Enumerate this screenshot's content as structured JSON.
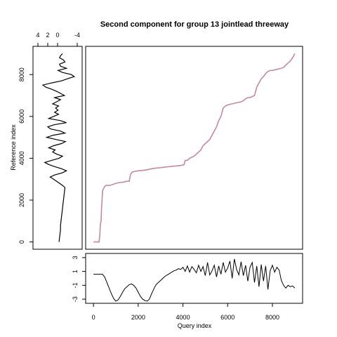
{
  "chart_data": [
    {
      "type": "line",
      "panel": "main",
      "title": "Second component for group 13 jointlead threeway",
      "xlabel": "Query index",
      "ylabel": "Reference index",
      "color": "#c48a9f",
      "xlim": [
        -350,
        9350
      ],
      "ylim": [
        -350,
        9350
      ],
      "series": [
        {
          "x": [
            0,
            100,
            250,
            280,
            300,
            320,
            340,
            360,
            380,
            400,
            420,
            450,
            500,
            550,
            600,
            700,
            800,
            1000,
            1200,
            1300,
            1500,
            1600,
            1650,
            1700,
            1750,
            1900,
            2000,
            2200,
            2400,
            2600,
            2800,
            3000,
            3200,
            3400,
            3600,
            3800,
            4000,
            4050,
            4100,
            4200,
            4300,
            4400,
            4500,
            4600,
            4700,
            4800,
            4900,
            5000,
            5100,
            5200,
            5300,
            5400,
            5500,
            5600,
            5700,
            5750,
            5800,
            5850,
            5900,
            6000,
            6200,
            6400,
            6600,
            6700,
            6800,
            6900,
            7000,
            7100,
            7200,
            7300,
            7400,
            7450,
            7500,
            7600,
            7700,
            7800,
            7900,
            8000,
            8200,
            8400,
            8500,
            8600,
            8700,
            8800,
            8900,
            9000
          ],
          "y": [
            0,
            0,
            0,
            300,
            700,
            900,
            1000,
            1600,
            2000,
            2300,
            2500,
            2550,
            2650,
            2700,
            2700,
            2700,
            2720,
            2800,
            2850,
            2850,
            2900,
            2900,
            3200,
            3300,
            3350,
            3380,
            3400,
            3420,
            3450,
            3500,
            3530,
            3550,
            3580,
            3600,
            3620,
            3640,
            3670,
            3700,
            3900,
            3900,
            4000,
            4050,
            4100,
            4200,
            4300,
            4400,
            4600,
            4700,
            4800,
            4900,
            5100,
            5300,
            5500,
            5800,
            6000,
            6200,
            6400,
            6450,
            6500,
            6550,
            6600,
            6650,
            6700,
            6750,
            6850,
            6900,
            6900,
            6950,
            7000,
            7400,
            7600,
            7700,
            7800,
            7900,
            8050,
            8150,
            8200,
            8200,
            8250,
            8300,
            8350,
            8450,
            8550,
            8650,
            8800,
            9000
          ]
        }
      ],
      "xticks": [
        0,
        2000,
        4000,
        6000,
        8000
      ],
      "yticks": [
        0,
        2000,
        4000,
        6000,
        8000
      ]
    },
    {
      "type": "line",
      "panel": "left",
      "description_axis": "reference signal plotted vertically",
      "xlim": [
        5,
        -5
      ],
      "ylim": [
        -350,
        9350
      ],
      "xticks": [
        4,
        2,
        0,
        -4
      ],
      "xtick_labels": [
        "4",
        "2",
        "0",
        "-4"
      ],
      "color": "#000000",
      "series": [
        {
          "y": [
            0,
            200,
            400,
            600,
            800,
            1000,
            1200,
            1400,
            1600,
            1800,
            2000,
            2200,
            2400,
            2600,
            2700,
            2800,
            2900,
            3000,
            3100,
            3200,
            3300,
            3400,
            3500,
            3600,
            3700,
            3800,
            3900,
            4000,
            4100,
            4200,
            4300,
            4400,
            4500,
            4600,
            4700,
            4800,
            4900,
            5000,
            5100,
            5200,
            5300,
            5400,
            5500,
            5600,
            5700,
            5800,
            5900,
            6000,
            6100,
            6200,
            6300,
            6400,
            6500,
            6600,
            6700,
            6800,
            6900,
            7000,
            7100,
            7200,
            7300,
            7400,
            7500,
            7600,
            7700,
            7800,
            7900,
            8000,
            8100,
            8200,
            8300,
            8400,
            8500,
            8600,
            8700,
            8800,
            8900,
            9000
          ],
          "x": [
            -0.3,
            -0.4,
            -0.5,
            -0.6,
            -0.6,
            -0.7,
            -0.8,
            -0.9,
            -1.0,
            -1.1,
            -1.2,
            -1.3,
            -1.4,
            -1.5,
            -1.0,
            -0.4,
            0.2,
            0.8,
            1.5,
            0.6,
            -0.9,
            -1.8,
            -0.8,
            0.6,
            1.8,
            2.6,
            1.2,
            -0.3,
            -1.0,
            0.2,
            1.0,
            0.5,
            1.8,
            0.8,
            -0.8,
            -1.6,
            0.4,
            2.2,
            0.9,
            -1.5,
            -0.6,
            1.4,
            2.0,
            0.7,
            -1.8,
            -0.6,
            1.8,
            0.8,
            -0.2,
            0.6,
            -0.1,
            0.4,
            -0.2,
            1.0,
            0.2,
            -0.6,
            0.6,
            -1.4,
            -0.6,
            0.2,
            1.2,
            2.4,
            3.0,
            1.2,
            -0.8,
            -2.0,
            -3.4,
            -2.8,
            -1.0,
            -0.1,
            -1.8,
            -0.6,
            -0.4,
            -1.5,
            -1.2,
            -0.4,
            -0.6,
            -1.0
          ]
        }
      ]
    },
    {
      "type": "line",
      "panel": "bottom",
      "description_axis": "query signal",
      "xlim": [
        -350,
        9350
      ],
      "ylim": [
        -3.6,
        3.6
      ],
      "yticks": [
        -3,
        -1,
        1,
        3
      ],
      "ytick_labels": [
        "-3",
        "-1",
        "1",
        "3"
      ],
      "color": "#000000",
      "series": [
        {
          "x": [
            0,
            200,
            400,
            500,
            600,
            700,
            800,
            900,
            1000,
            1100,
            1200,
            1300,
            1400,
            1500,
            1600,
            1700,
            1800,
            1900,
            2000,
            2100,
            2200,
            2300,
            2400,
            2500,
            2600,
            2700,
            2800,
            2900,
            3000,
            3100,
            3200,
            3300,
            3400,
            3500,
            3600,
            3700,
            3800,
            3900,
            4000,
            4100,
            4200,
            4300,
            4400,
            4500,
            4600,
            4700,
            4800,
            4900,
            5000,
            5100,
            5200,
            5300,
            5400,
            5500,
            5600,
            5700,
            5800,
            5900,
            6000,
            6100,
            6200,
            6300,
            6400,
            6500,
            6600,
            6700,
            6800,
            6900,
            7000,
            7100,
            7200,
            7300,
            7400,
            7500,
            7600,
            7700,
            7800,
            7900,
            8000,
            8100,
            8200,
            8300,
            8400,
            8500,
            8600,
            8700,
            8800,
            8900,
            9000
          ],
          "y": [
            0.6,
            0.6,
            0.6,
            0.2,
            -0.6,
            -1.4,
            -2.2,
            -2.9,
            -3.3,
            -3.1,
            -2.6,
            -2.0,
            -1.5,
            -1.2,
            -0.9,
            -0.8,
            -1.0,
            -1.4,
            -2.0,
            -2.6,
            -3.0,
            -3.2,
            -3.3,
            -3.0,
            -2.2,
            -1.5,
            -0.9,
            -0.6,
            -0.3,
            0.0,
            0.3,
            0.5,
            0.7,
            0.9,
            1.1,
            1.2,
            1.4,
            1.3,
            1.6,
            1.0,
            1.8,
            0.9,
            1.7,
            1.3,
            0.8,
            1.9,
            1.0,
            1.7,
            0.4,
            2.3,
            0.5,
            1.1,
            1.9,
            0.2,
            1.8,
            0.6,
            2.3,
            0.9,
            1.5,
            2.5,
            0.0,
            2.8,
            1.3,
            0.5,
            2.4,
            0.4,
            1.9,
            -0.4,
            1.6,
            2.3,
            -0.6,
            1.8,
            -1.2,
            2.0,
            -0.4,
            1.8,
            -1.6,
            1.1,
            1.9,
            0.9,
            1.6,
            1.2,
            -0.3,
            -1.0,
            -1.4,
            -1.0,
            -1.2,
            -1.1,
            -1.4
          ]
        }
      ]
    }
  ]
}
